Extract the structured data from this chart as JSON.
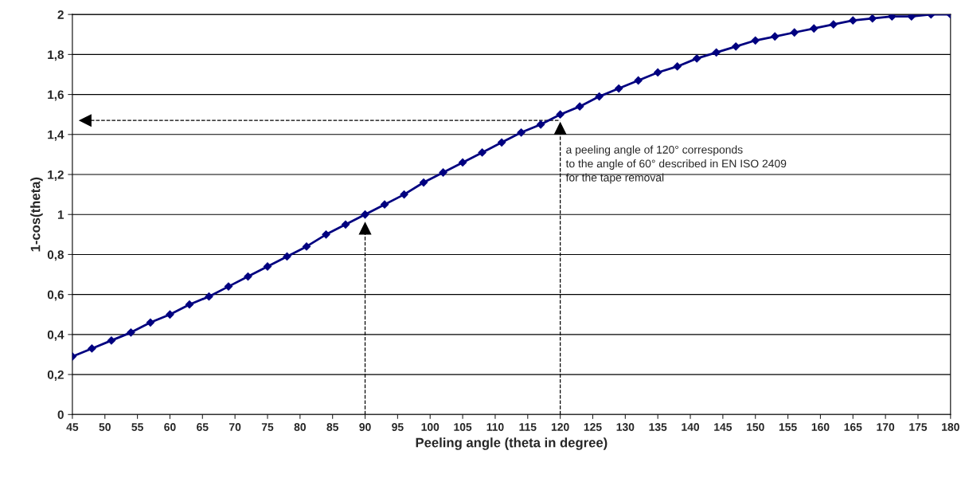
{
  "chart_data": {
    "type": "line",
    "xlabel": "Peeling angle (theta in degree)",
    "ylabel": "1-cos(theta)",
    "x": [
      45,
      48,
      51,
      54,
      57,
      60,
      63,
      66,
      69,
      72,
      75,
      78,
      81,
      84,
      87,
      90,
      93,
      96,
      99,
      102,
      105,
      108,
      111,
      114,
      117,
      120,
      123,
      126,
      129,
      132,
      135,
      138,
      141,
      144,
      147,
      150,
      153,
      156,
      159,
      162,
      165,
      168,
      171,
      174,
      177,
      180
    ],
    "series": [
      {
        "color": "#000080",
        "values": [
          0.29,
          0.33,
          0.37,
          0.41,
          0.46,
          0.5,
          0.55,
          0.59,
          0.64,
          0.69,
          0.74,
          0.79,
          0.84,
          0.9,
          0.95,
          1,
          1.05,
          1.1,
          1.16,
          1.21,
          1.26,
          1.31,
          1.36,
          1.41,
          1.45,
          1.5,
          1.54,
          1.59,
          1.63,
          1.67,
          1.71,
          1.74,
          1.78,
          1.81,
          1.84,
          1.87,
          1.89,
          1.91,
          1.93,
          1.95,
          1.97,
          1.98,
          1.99,
          1.99,
          2,
          2
        ]
      }
    ],
    "marker": "diamond",
    "line_style": "solid",
    "grid": "y",
    "xlim": [
      45,
      180
    ],
    "xticks": [
      45,
      50,
      55,
      60,
      65,
      70,
      75,
      80,
      85,
      90,
      95,
      100,
      105,
      110,
      115,
      120,
      125,
      130,
      135,
      140,
      145,
      150,
      155,
      160,
      165,
      170,
      175,
      180
    ],
    "ylim": [
      0,
      2
    ],
    "yticks": [
      0,
      {
        "value": 0.2,
        "label": "0,2"
      },
      {
        "value": 0.4,
        "label": "0,4"
      },
      {
        "value": 0.6,
        "label": "0,6"
      },
      {
        "value": 0.8,
        "label": "0,8"
      },
      1,
      {
        "value": 1.2,
        "label": "1,2"
      },
      {
        "value": 1.4,
        "label": "1,4"
      },
      {
        "value": 1.6,
        "label": "1,6"
      },
      {
        "value": 1.8,
        "label": "1,8"
      },
      2
    ],
    "ref_lines": [
      {
        "axis": "x",
        "value": 90,
        "line_style": "dashed",
        "color": "#000000"
      },
      {
        "axis": "x",
        "value": 120,
        "line_style": "dashed",
        "color": "#000000"
      },
      {
        "axis": "y",
        "value": 1.47,
        "line_style": "dashed",
        "color": "#000000"
      }
    ],
    "annotations": [
      {
        "text": "a peeling angle of 120° corresponds\nto the angle of 60° described in EN ISO 2409\nfor the tape removal",
        "x": 120,
        "y": 1.5
      }
    ]
  }
}
